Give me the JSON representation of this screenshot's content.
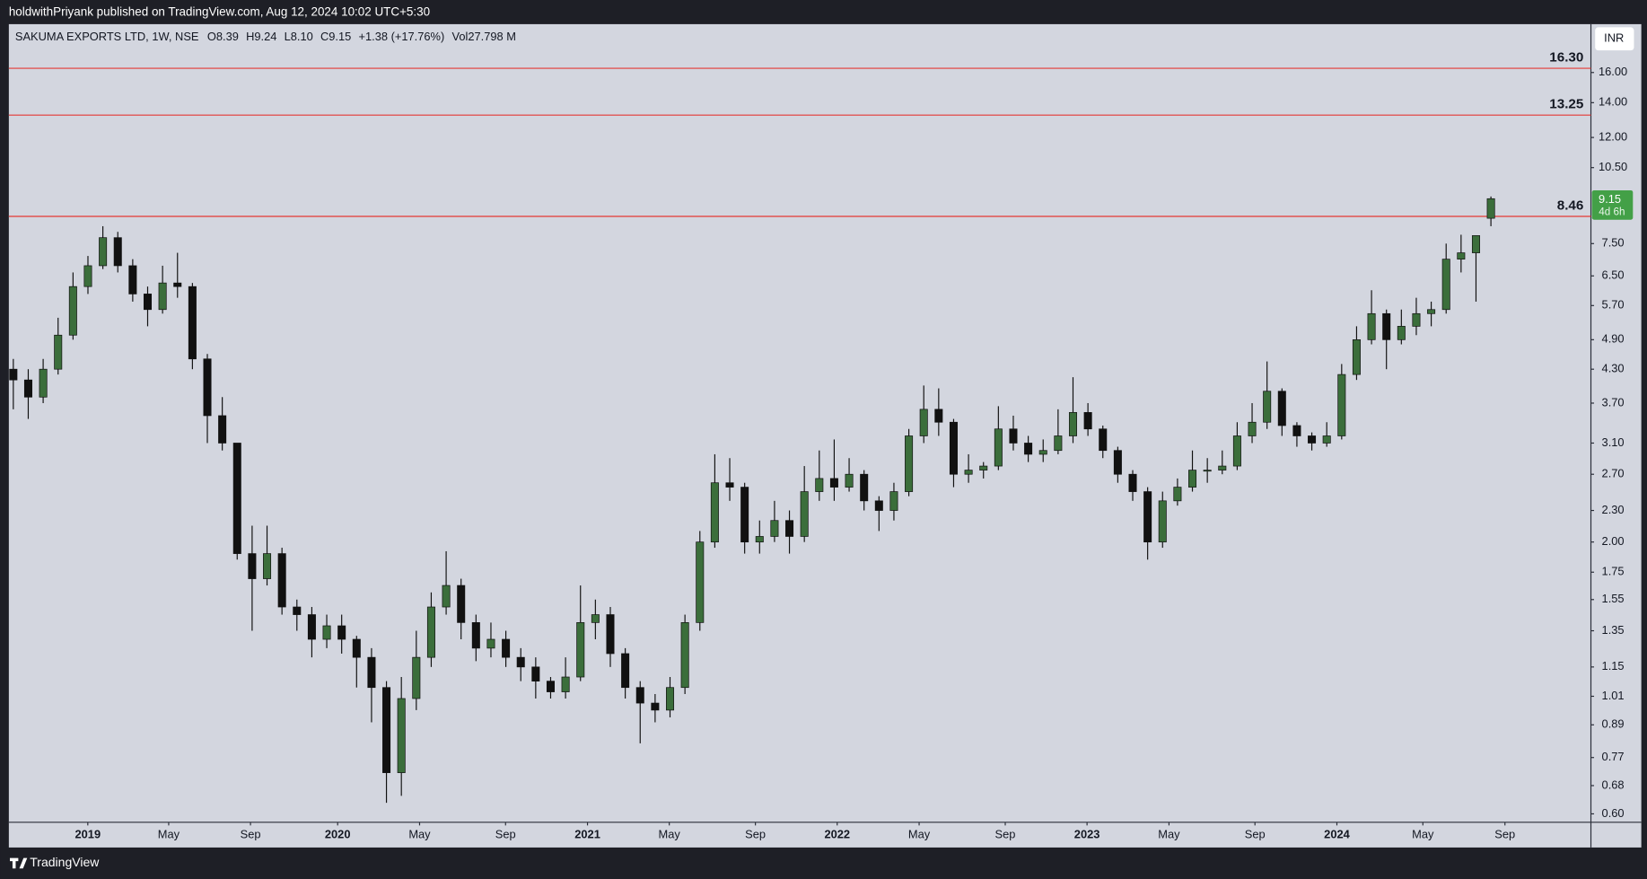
{
  "header": {
    "published": "holdwithPriyank published on TradingView.com, Aug 12, 2024 10:02 UTC+5:30"
  },
  "footer": {
    "brand": "TradingView"
  },
  "chart_data": {
    "type": "candlestick",
    "legend": {
      "symbol": "SAKUMA EXPORTS LTD, 1W, NSE",
      "items": [
        {
          "label": "O",
          "value": "8.39"
        },
        {
          "label": "H",
          "value": "9.24"
        },
        {
          "label": "L",
          "value": "8.10"
        },
        {
          "label": "C",
          "value": "9.15"
        }
      ],
      "change": "+1.38 (+17.76%)",
      "volume_label": "Vol",
      "volume": "27.798 M"
    },
    "currency": "INR",
    "up_color": "#3b6e3b",
    "down_color": "#111111",
    "wick_color": "#111111",
    "log_scale": true,
    "xlim": [
      -0.3,
      105.7
    ],
    "xticks": [
      {
        "value": 4.99,
        "label": "2019"
      },
      {
        "value": 10.41,
        "label": "May"
      },
      {
        "value": 15.89,
        "label": "Sep"
      },
      {
        "value": 21.73,
        "label": "2020"
      },
      {
        "value": 27.22,
        "label": "May"
      },
      {
        "value": 32.98,
        "label": "Sep"
      },
      {
        "value": 38.47,
        "label": "2021"
      },
      {
        "value": 43.95,
        "label": "May"
      },
      {
        "value": 49.72,
        "label": "Sep"
      },
      {
        "value": 55.2,
        "label": "2022"
      },
      {
        "value": 60.69,
        "label": "May"
      },
      {
        "value": 66.46,
        "label": "Sep"
      },
      {
        "value": 71.94,
        "label": "2023"
      },
      {
        "value": 77.43,
        "label": "May"
      },
      {
        "value": 83.19,
        "label": "Sep"
      },
      {
        "value": 88.68,
        "label": "2024"
      },
      {
        "value": 94.44,
        "label": "May"
      },
      {
        "value": 99.94,
        "label": "Sep"
      }
    ],
    "ylim": [
      0.578,
      19.73
    ],
    "yticks": [
      {
        "value": 16,
        "label": "16.00"
      },
      {
        "value": 14,
        "label": "14.00"
      },
      {
        "value": 12,
        "label": "12.00"
      },
      {
        "value": 10.5,
        "label": "10.50"
      },
      {
        "value": 7.5,
        "label": "7.50"
      },
      {
        "value": 6.5,
        "label": "6.50"
      },
      {
        "value": 5.7,
        "label": "5.70"
      },
      {
        "value": 4.9,
        "label": "4.90"
      },
      {
        "value": 4.3,
        "label": "4.30"
      },
      {
        "value": 3.7,
        "label": "3.70"
      },
      {
        "value": 3.1,
        "label": "3.10"
      },
      {
        "value": 2.7,
        "label": "2.70"
      },
      {
        "value": 2.3,
        "label": "2.30"
      },
      {
        "value": 2,
        "label": "2.00"
      },
      {
        "value": 1.75,
        "label": "1.75"
      },
      {
        "value": 1.55,
        "label": "1.55"
      },
      {
        "value": 1.35,
        "label": "1.35"
      },
      {
        "value": 1.15,
        "label": "1.15"
      },
      {
        "value": 1.01,
        "label": "1.01"
      },
      {
        "value": 0.89,
        "label": "0.89"
      },
      {
        "value": 0.77,
        "label": "0.77"
      },
      {
        "value": 0.68,
        "label": "0.68"
      },
      {
        "value": 0.6,
        "label": "0.60"
      }
    ],
    "levels": [
      {
        "value": 16.3,
        "label": "16.30",
        "color": "#e53935"
      },
      {
        "value": 13.25,
        "label": "13.25",
        "color": "#e53935"
      },
      {
        "value": 8.46,
        "label": "8.46",
        "color": "#e53935"
      }
    ],
    "last_price": {
      "value": 9.15,
      "label": "9.15",
      "countdown": "4d 6h",
      "color": "#43a047"
    },
    "ohlc": [
      [
        4.3,
        4.5,
        3.6,
        4.1
      ],
      [
        4.1,
        4.3,
        3.45,
        3.8
      ],
      [
        3.8,
        4.5,
        3.7,
        4.3
      ],
      [
        4.3,
        5.4,
        4.2,
        5.0
      ],
      [
        5.0,
        6.6,
        4.9,
        6.2
      ],
      [
        6.2,
        7.1,
        6.0,
        6.8
      ],
      [
        6.8,
        8.1,
        6.7,
        7.7
      ],
      [
        7.7,
        7.9,
        6.6,
        6.8
      ],
      [
        6.8,
        7.0,
        5.8,
        6.0
      ],
      [
        6.0,
        6.2,
        5.2,
        5.6
      ],
      [
        5.6,
        6.8,
        5.5,
        6.3
      ],
      [
        6.3,
        7.2,
        5.9,
        6.2
      ],
      [
        6.2,
        6.3,
        4.3,
        4.5
      ],
      [
        4.5,
        4.6,
        3.1,
        3.5
      ],
      [
        3.5,
        3.8,
        3.0,
        3.1
      ],
      [
        3.1,
        3.1,
        1.85,
        1.9
      ],
      [
        1.9,
        2.15,
        1.35,
        1.7
      ],
      [
        1.7,
        2.15,
        1.65,
        1.9
      ],
      [
        1.9,
        1.95,
        1.45,
        1.5
      ],
      [
        1.5,
        1.55,
        1.35,
        1.45
      ],
      [
        1.45,
        1.5,
        1.2,
        1.3
      ],
      [
        1.3,
        1.45,
        1.25,
        1.38
      ],
      [
        1.38,
        1.45,
        1.22,
        1.3
      ],
      [
        1.3,
        1.32,
        1.05,
        1.2
      ],
      [
        1.2,
        1.25,
        0.9,
        1.05
      ],
      [
        1.05,
        1.08,
        0.63,
        0.72
      ],
      [
        0.72,
        1.1,
        0.65,
        1.0
      ],
      [
        1.0,
        1.35,
        0.95,
        1.2
      ],
      [
        1.2,
        1.6,
        1.15,
        1.5
      ],
      [
        1.5,
        1.92,
        1.45,
        1.65
      ],
      [
        1.65,
        1.7,
        1.3,
        1.4
      ],
      [
        1.4,
        1.45,
        1.18,
        1.25
      ],
      [
        1.25,
        1.4,
        1.2,
        1.3
      ],
      [
        1.3,
        1.35,
        1.15,
        1.2
      ],
      [
        1.2,
        1.25,
        1.08,
        1.15
      ],
      [
        1.15,
        1.2,
        1.0,
        1.08
      ],
      [
        1.08,
        1.1,
        1.0,
        1.03
      ],
      [
        1.03,
        1.2,
        1.0,
        1.1
      ],
      [
        1.1,
        1.65,
        1.08,
        1.4
      ],
      [
        1.4,
        1.55,
        1.3,
        1.45
      ],
      [
        1.45,
        1.5,
        1.15,
        1.22
      ],
      [
        1.22,
        1.25,
        1.0,
        1.05
      ],
      [
        1.05,
        1.08,
        0.82,
        0.98
      ],
      [
        0.98,
        1.02,
        0.9,
        0.95
      ],
      [
        0.95,
        1.1,
        0.92,
        1.05
      ],
      [
        1.05,
        1.45,
        1.02,
        1.4
      ],
      [
        1.4,
        2.1,
        1.35,
        2.0
      ],
      [
        2.0,
        2.95,
        1.95,
        2.6
      ],
      [
        2.6,
        2.9,
        2.4,
        2.55
      ],
      [
        2.55,
        2.6,
        1.9,
        2.0
      ],
      [
        2.0,
        2.2,
        1.9,
        2.05
      ],
      [
        2.05,
        2.4,
        2.0,
        2.2
      ],
      [
        2.2,
        2.3,
        1.9,
        2.05
      ],
      [
        2.05,
        2.8,
        2.0,
        2.5
      ],
      [
        2.5,
        3.0,
        2.4,
        2.65
      ],
      [
        2.65,
        3.15,
        2.4,
        2.55
      ],
      [
        2.55,
        2.9,
        2.5,
        2.7
      ],
      [
        2.7,
        2.75,
        2.3,
        2.4
      ],
      [
        2.4,
        2.45,
        2.1,
        2.3
      ],
      [
        2.3,
        2.6,
        2.2,
        2.5
      ],
      [
        2.5,
        3.3,
        2.45,
        3.2
      ],
      [
        3.2,
        4.0,
        3.1,
        3.6
      ],
      [
        3.6,
        3.95,
        3.2,
        3.4
      ],
      [
        3.4,
        3.45,
        2.55,
        2.7
      ],
      [
        2.7,
        2.95,
        2.6,
        2.75
      ],
      [
        2.75,
        2.85,
        2.65,
        2.8
      ],
      [
        2.8,
        3.65,
        2.75,
        3.3
      ],
      [
        3.3,
        3.5,
        3.0,
        3.1
      ],
      [
        3.1,
        3.2,
        2.85,
        2.95
      ],
      [
        2.95,
        3.15,
        2.85,
        3.0
      ],
      [
        3.0,
        3.6,
        2.95,
        3.2
      ],
      [
        3.2,
        4.15,
        3.1,
        3.55
      ],
      [
        3.55,
        3.7,
        3.2,
        3.3
      ],
      [
        3.3,
        3.35,
        2.9,
        3.0
      ],
      [
        3.0,
        3.05,
        2.6,
        2.7
      ],
      [
        2.7,
        2.75,
        2.4,
        2.5
      ],
      [
        2.5,
        2.55,
        1.85,
        2.0
      ],
      [
        2.0,
        2.5,
        1.95,
        2.4
      ],
      [
        2.4,
        2.65,
        2.35,
        2.55
      ],
      [
        2.55,
        3.0,
        2.5,
        2.75
      ],
      [
        2.75,
        2.9,
        2.6,
        2.75
      ],
      [
        2.75,
        3.0,
        2.7,
        2.8
      ],
      [
        2.8,
        3.4,
        2.75,
        3.2
      ],
      [
        3.2,
        3.7,
        3.1,
        3.4
      ],
      [
        3.4,
        4.45,
        3.3,
        3.9
      ],
      [
        3.9,
        3.95,
        3.2,
        3.35
      ],
      [
        3.35,
        3.4,
        3.05,
        3.2
      ],
      [
        3.2,
        3.25,
        3.0,
        3.1
      ],
      [
        3.1,
        3.4,
        3.05,
        3.2
      ],
      [
        3.2,
        4.4,
        3.15,
        4.2
      ],
      [
        4.2,
        5.2,
        4.1,
        4.9
      ],
      [
        4.9,
        6.1,
        4.8,
        5.5
      ],
      [
        5.5,
        5.6,
        4.3,
        4.9
      ],
      [
        4.9,
        5.6,
        4.8,
        5.2
      ],
      [
        5.2,
        5.9,
        5.0,
        5.5
      ],
      [
        5.5,
        5.8,
        5.2,
        5.6
      ],
      [
        5.6,
        7.5,
        5.5,
        7.0
      ],
      [
        7.0,
        7.8,
        6.6,
        7.2
      ],
      [
        7.2,
        7.77,
        5.8,
        7.77
      ],
      [
        8.39,
        9.24,
        8.1,
        9.15
      ]
    ]
  }
}
